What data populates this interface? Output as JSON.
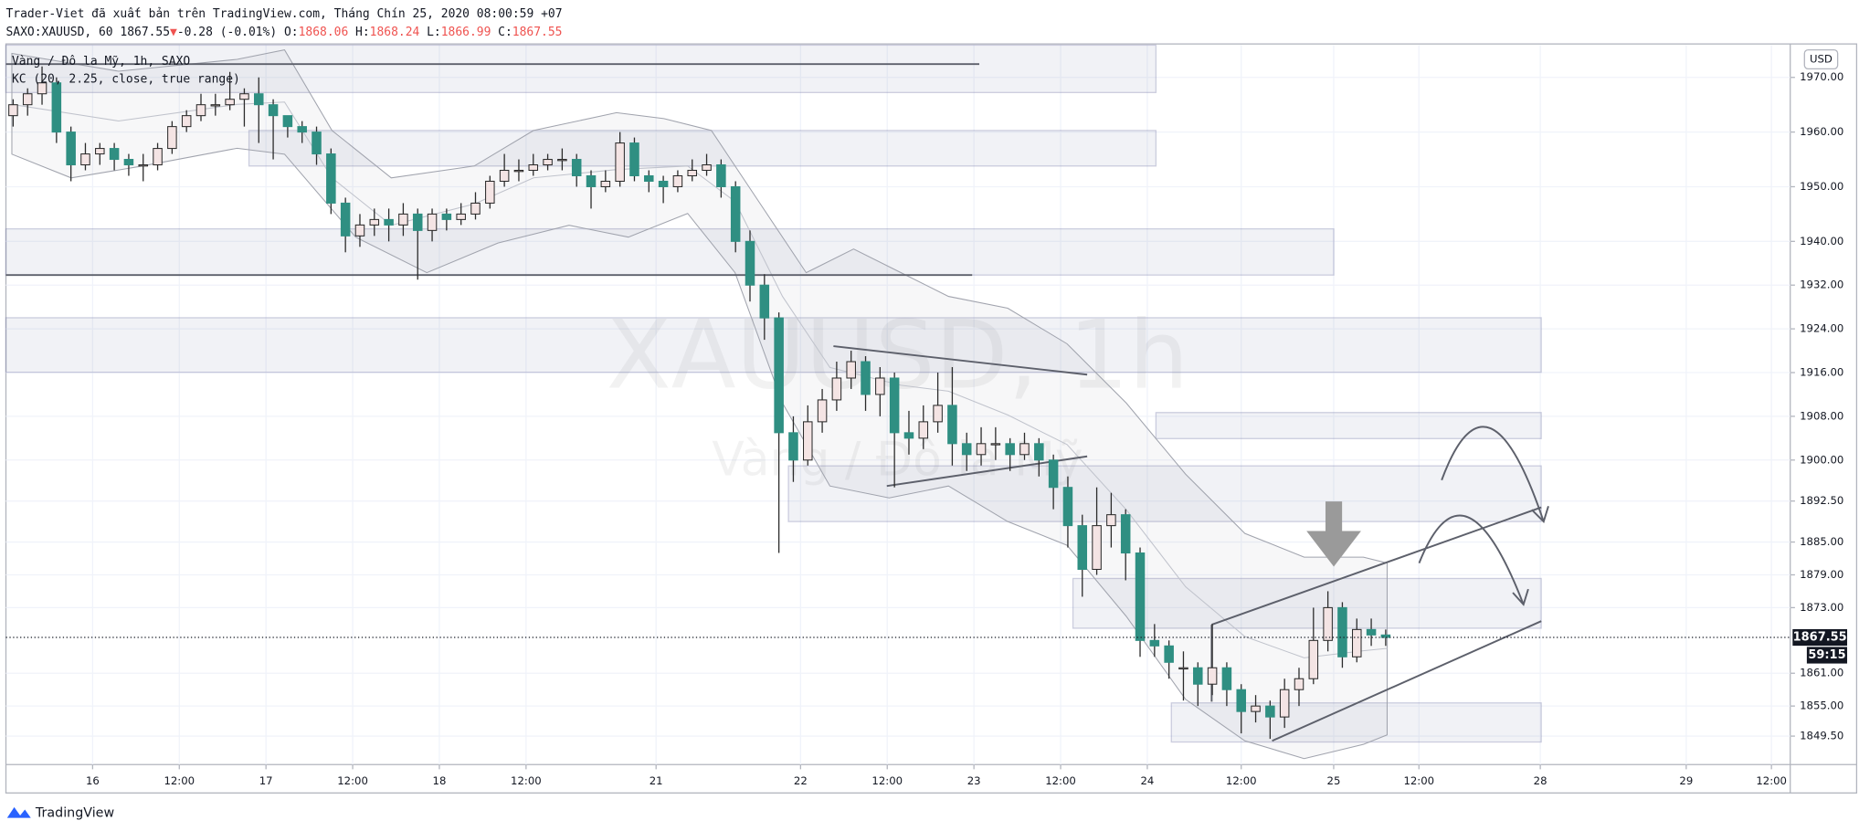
{
  "header": {
    "publisher": "Trader-Viet đã xuất bản trên TradingView.com, Tháng Chín 25, 2020 08:00:59 +07",
    "symbol": "SAXO:XAUUSD, 60",
    "change_arrow": "▼",
    "change": "-0.28 (-0.01%)",
    "o_label": "O:",
    "open": 1868.06,
    "h_label": "H:",
    "high": 1868.24,
    "l_label": "L:",
    "low": 1866.99,
    "c_label": "C:"
  },
  "chart_data": {
    "type": "candlestick",
    "title": "XAUUSD, 1h",
    "subtitle": "Vàng / Đô la Mỹ",
    "legend_title": "Vàng / Đô la Mỹ, 1h, SAXO",
    "indicator": "KC (20, 2.25, close, true range)",
    "currency": "USD",
    "countdown": "59:15",
    "up_color": "#f4e4e4",
    "down_color": "#2f8f82",
    "wick_color": "#2b2b2b",
    "grid": true,
    "xlim": [
      -0.5,
      123
    ],
    "ylim": [
      1844.3,
      1975.9
    ],
    "xticks": [
      {
        "value": 5.5,
        "label": "16"
      },
      {
        "value": 11.5,
        "label": "12:00"
      },
      {
        "value": 17.5,
        "label": "17"
      },
      {
        "value": 23.5,
        "label": "12:00"
      },
      {
        "value": 29.5,
        "label": "18"
      },
      {
        "value": 35.5,
        "label": "12:00"
      },
      {
        "value": 44.5,
        "label": "21"
      },
      {
        "value": 54.5,
        "label": "22"
      },
      {
        "value": 60.5,
        "label": "12:00"
      },
      {
        "value": 66.5,
        "label": "23"
      },
      {
        "value": 72.5,
        "label": "12:00"
      },
      {
        "value": 78.5,
        "label": "24"
      },
      {
        "value": 85,
        "label": "12:00"
      },
      {
        "value": 91.4,
        "label": "25"
      },
      {
        "value": 97.3,
        "label": "12:00"
      },
      {
        "value": 105.7,
        "label": "28"
      },
      {
        "value": 115.8,
        "label": "29"
      },
      {
        "value": 121.7,
        "label": "12:00"
      }
    ],
    "yticks": [
      {
        "value": 1970,
        "label": "1970.00"
      },
      {
        "value": 1960,
        "label": "1960.00"
      },
      {
        "value": 1950,
        "label": "1950.00"
      },
      {
        "value": 1940,
        "label": "1940.00"
      },
      {
        "value": 1932,
        "label": "1932.00"
      },
      {
        "value": 1924,
        "label": "1924.00"
      },
      {
        "value": 1916,
        "label": "1916.00"
      },
      {
        "value": 1908,
        "label": "1908.00"
      },
      {
        "value": 1900,
        "label": "1900.00"
      },
      {
        "value": 1892.5,
        "label": "1892.50"
      },
      {
        "value": 1885,
        "label": "1885.00"
      },
      {
        "value": 1879,
        "label": "1879.00"
      },
      {
        "value": 1873,
        "label": "1873.00"
      },
      {
        "value": 1861,
        "label": "1861.00"
      },
      {
        "value": 1855,
        "label": "1855.00"
      },
      {
        "value": 1849.5,
        "label": "1849.50"
      }
    ],
    "candles": [
      [
        1963,
        1966,
        1961,
        1965
      ],
      [
        1965,
        1968,
        1963,
        1967
      ],
      [
        1967,
        1972,
        1965,
        1969
      ],
      [
        1969,
        1970,
        1958,
        1960
      ],
      [
        1960,
        1961,
        1951,
        1954
      ],
      [
        1954,
        1958,
        1953,
        1956
      ],
      [
        1956,
        1958,
        1954,
        1957
      ],
      [
        1957,
        1958,
        1953,
        1955
      ],
      [
        1955,
        1956,
        1952,
        1954
      ],
      [
        1954,
        1956,
        1951,
        1954
      ],
      [
        1954,
        1958,
        1953,
        1957
      ],
      [
        1957,
        1962,
        1956,
        1961
      ],
      [
        1961,
        1964,
        1960,
        1963
      ],
      [
        1963,
        1967,
        1962,
        1965
      ],
      [
        1965,
        1967,
        1963,
        1965
      ],
      [
        1965,
        1971,
        1964,
        1966
      ],
      [
        1966,
        1968,
        1961,
        1967
      ],
      [
        1967,
        1970,
        1958,
        1965
      ],
      [
        1965,
        1966,
        1955,
        1963
      ],
      [
        1963,
        1963,
        1959,
        1961
      ],
      [
        1961,
        1962,
        1958,
        1960
      ],
      [
        1960,
        1961,
        1954,
        1956
      ],
      [
        1956,
        1957,
        1945,
        1947
      ],
      [
        1947,
        1948,
        1938,
        1941
      ],
      [
        1941,
        1945,
        1939,
        1943
      ],
      [
        1943,
        1946,
        1941,
        1944
      ],
      [
        1944,
        1946,
        1940,
        1943
      ],
      [
        1943,
        1947,
        1941,
        1945
      ],
      [
        1945,
        1946,
        1933,
        1942
      ],
      [
        1942,
        1946,
        1940,
        1945
      ],
      [
        1945,
        1946,
        1942,
        1944
      ],
      [
        1944,
        1947,
        1943,
        1945
      ],
      [
        1945,
        1949,
        1944,
        1947
      ],
      [
        1947,
        1952,
        1946,
        1951
      ],
      [
        1951,
        1956,
        1950,
        1953
      ],
      [
        1953,
        1955,
        1951,
        1953
      ],
      [
        1953,
        1956,
        1952,
        1954
      ],
      [
        1954,
        1956,
        1953,
        1955
      ],
      [
        1955,
        1957,
        1953,
        1955
      ],
      [
        1955,
        1956,
        1950,
        1952
      ],
      [
        1952,
        1953,
        1946,
        1950
      ],
      [
        1950,
        1953,
        1949,
        1951
      ],
      [
        1951,
        1960,
        1950,
        1958
      ],
      [
        1958,
        1959,
        1951,
        1952
      ],
      [
        1952,
        1953,
        1949,
        1951
      ],
      [
        1951,
        1952,
        1947,
        1950
      ],
      [
        1950,
        1953,
        1949,
        1952
      ],
      [
        1952,
        1955,
        1951,
        1953
      ],
      [
        1953,
        1956,
        1952,
        1954
      ],
      [
        1954,
        1955,
        1948,
        1950
      ],
      [
        1950,
        1951,
        1938,
        1940
      ],
      [
        1940,
        1942,
        1929,
        1932
      ],
      [
        1932,
        1934,
        1922,
        1926
      ],
      [
        1926,
        1927,
        1883,
        1905
      ],
      [
        1905,
        1908,
        1896,
        1900
      ],
      [
        1900,
        1910,
        1899,
        1907
      ],
      [
        1907,
        1913,
        1905,
        1911
      ],
      [
        1911,
        1918,
        1909,
        1915
      ],
      [
        1915,
        1920,
        1913,
        1918
      ],
      [
        1918,
        1919,
        1909,
        1912
      ],
      [
        1912,
        1917,
        1908,
        1915
      ],
      [
        1915,
        1916,
        1895,
        1905
      ],
      [
        1905,
        1909,
        1901,
        1904
      ],
      [
        1904,
        1910,
        1902,
        1907
      ],
      [
        1907,
        1916,
        1905,
        1910
      ],
      [
        1910,
        1917,
        1899,
        1903
      ],
      [
        1903,
        1905,
        1898,
        1901
      ],
      [
        1901,
        1906,
        1899,
        1903
      ],
      [
        1903,
        1906,
        1900,
        1903
      ],
      [
        1903,
        1904,
        1898,
        1901
      ],
      [
        1901,
        1905,
        1900,
        1903
      ],
      [
        1903,
        1904,
        1897,
        1900
      ],
      [
        1900,
        1901,
        1891,
        1895
      ],
      [
        1895,
        1897,
        1884,
        1888
      ],
      [
        1888,
        1890,
        1875,
        1880
      ],
      [
        1880,
        1895,
        1879,
        1888
      ],
      [
        1888,
        1894,
        1884,
        1890
      ],
      [
        1890,
        1891,
        1878,
        1883
      ],
      [
        1883,
        1884,
        1864,
        1867
      ],
      [
        1867,
        1870,
        1864,
        1866
      ],
      [
        1866,
        1867,
        1860,
        1863
      ],
      [
        1862,
        1865,
        1856,
        1862
      ],
      [
        1862,
        1863,
        1855,
        1859
      ],
      [
        1859,
        1870,
        1857,
        1862
      ],
      [
        1862,
        1863,
        1855,
        1858
      ],
      [
        1858,
        1859,
        1850,
        1854
      ],
      [
        1854,
        1857,
        1852,
        1855
      ],
      [
        1855,
        1856,
        1849,
        1853
      ],
      [
        1853,
        1860,
        1851,
        1858
      ],
      [
        1858,
        1862,
        1855,
        1860
      ],
      [
        1860,
        1873,
        1859,
        1867
      ],
      [
        1867,
        1876,
        1865,
        1873
      ],
      [
        1873,
        1874,
        1862,
        1864
      ],
      [
        1864,
        1871,
        1863,
        1869
      ],
      [
        1869,
        1871,
        1866,
        1868
      ],
      [
        1868,
        1869,
        1866,
        1867.55
      ]
    ]
  },
  "footer": {
    "brand": "TradingView"
  }
}
